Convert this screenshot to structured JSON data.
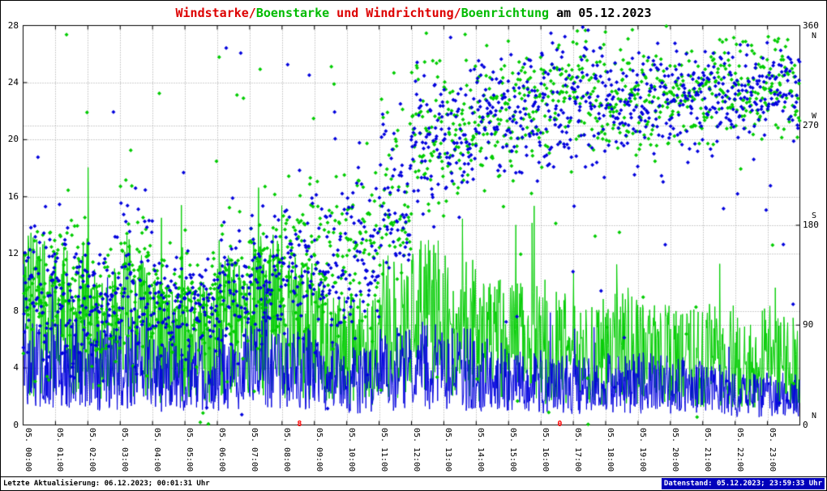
{
  "title": {
    "segments": [
      {
        "text": "Windstarke/",
        "color": "#dd0000"
      },
      {
        "text": "Boenstarke",
        "color": "#00bb00"
      },
      {
        "text": " und Windrichtung/",
        "color": "#dd0000"
      },
      {
        "text": "Boenrichtung",
        "color": "#00bb00"
      },
      {
        "text": " am 05.12.2023",
        "color": "#000000"
      }
    ]
  },
  "footer": {
    "left": "Letzte Aktualisierung: 06.12.2023; 00:01:31 Uhr",
    "right": "Datenstand: 05.12.2023; 23:59:33 Uhr",
    "right_bg": "#0000bb",
    "right_fg": "#ffffff"
  },
  "chart_data": {
    "type": "line+scatter",
    "title": "Windstarke/Boenstarke und Windrichtung/Boenrichtung am 05.12.2023",
    "x_labels": [
      "05. 00:00",
      "05. 01:00",
      "05. 02:00",
      "05. 03:00",
      "05. 04:00",
      "05. 05:00",
      "05. 06:00",
      "05. 07:00",
      "05. 08:00",
      "05. 09:00",
      "05. 10:00",
      "05. 11:00",
      "05. 12:00",
      "05. 13:00",
      "05. 14:00",
      "05. 15:00",
      "05. 16:00",
      "05. 17:00",
      "05. 18:00",
      "05. 19:00",
      "05. 20:00",
      "05. 21:00",
      "05. 22:00",
      "05. 23:00"
    ],
    "y_left": {
      "min": 0,
      "max": 28,
      "ticks": [
        0,
        4,
        8,
        12,
        16,
        20,
        24,
        28
      ]
    },
    "y_right": {
      "min": 0,
      "max": 360,
      "ticks": [
        {
          "value": 360,
          "letter": "N",
          "letter_pos": "below"
        },
        {
          "value": 270,
          "letter": "W",
          "letter_pos": "above"
        },
        {
          "value": 180,
          "letter": "S",
          "letter_pos": "above"
        },
        {
          "value": 90,
          "letter": "",
          "letter_pos": ""
        },
        {
          "value": 0,
          "letter": "N",
          "letter_pos": "above"
        }
      ]
    },
    "grid": {
      "color": "#9a9a9a"
    },
    "annotations": [
      {
        "text": "8",
        "x_hour": 8.54,
        "color": "#ff0000"
      },
      {
        "text": "0",
        "x_hour": 16.58,
        "color": "#ff0000"
      }
    ],
    "series": [
      {
        "name": "Windstarke",
        "type": "line",
        "axis": "left",
        "color": "#0000dd",
        "seed": 1,
        "spike_prob": 0.012,
        "hourly_base": [
          4.2,
          4.5,
          4.0,
          4.5,
          3.6,
          3.6,
          4.0,
          4.4,
          4.0,
          3.6,
          3.2,
          4.0,
          4.4,
          4.0,
          3.6,
          3.2,
          3.0,
          2.8,
          3.0,
          3.0,
          2.8,
          2.6,
          2.2,
          2.2
        ],
        "hourly_peak": [
          13,
          13,
          11,
          13,
          9,
          9,
          10,
          11,
          9,
          8,
          8,
          9,
          10,
          9,
          9,
          8,
          8,
          7,
          7,
          6,
          6,
          6,
          5,
          5
        ]
      },
      {
        "name": "Boenstarke",
        "type": "line",
        "axis": "left",
        "color": "#00cc00",
        "seed": 2,
        "spike_prob": 0.02,
        "hourly_base": [
          8,
          8,
          7,
          8,
          6,
          6,
          7,
          8,
          7,
          6,
          5.5,
          7,
          8,
          7,
          6,
          6,
          5.5,
          5,
          5.5,
          5,
          5,
          5,
          4.5,
          4.5
        ],
        "hourly_peak": [
          26,
          22,
          21,
          23,
          16,
          14,
          16,
          18,
          14,
          13,
          12,
          16,
          18,
          16,
          14,
          16,
          13,
          12,
          13,
          12,
          16,
          12,
          11,
          10
        ]
      },
      {
        "name": "Windrichtung",
        "type": "scatter",
        "axis": "right",
        "color": "#0000dd",
        "seed": 3,
        "hourly_mean_deg": [
          120,
          120,
          110,
          130,
          110,
          110,
          120,
          130,
          140,
          140,
          150,
          200,
          260,
          270,
          280,
          280,
          290,
          290,
          285,
          290,
          290,
          295,
          300,
          300
        ],
        "hourly_spread_deg": [
          60,
          70,
          60,
          80,
          50,
          50,
          60,
          60,
          70,
          70,
          80,
          90,
          80,
          70,
          60,
          60,
          60,
          60,
          55,
          55,
          50,
          50,
          45,
          45
        ]
      },
      {
        "name": "Boenrichtung",
        "type": "scatter",
        "axis": "right",
        "color": "#00cc00",
        "seed": 4,
        "hourly_mean_deg": [
          115,
          125,
          105,
          135,
          105,
          115,
          125,
          135,
          145,
          145,
          155,
          205,
          265,
          275,
          285,
          285,
          295,
          295,
          290,
          295,
          295,
          300,
          305,
          305
        ],
        "hourly_spread_deg": [
          65,
          70,
          65,
          80,
          55,
          55,
          65,
          65,
          70,
          70,
          80,
          90,
          80,
          70,
          65,
          65,
          60,
          60,
          55,
          55,
          50,
          50,
          45,
          45
        ]
      }
    ]
  }
}
